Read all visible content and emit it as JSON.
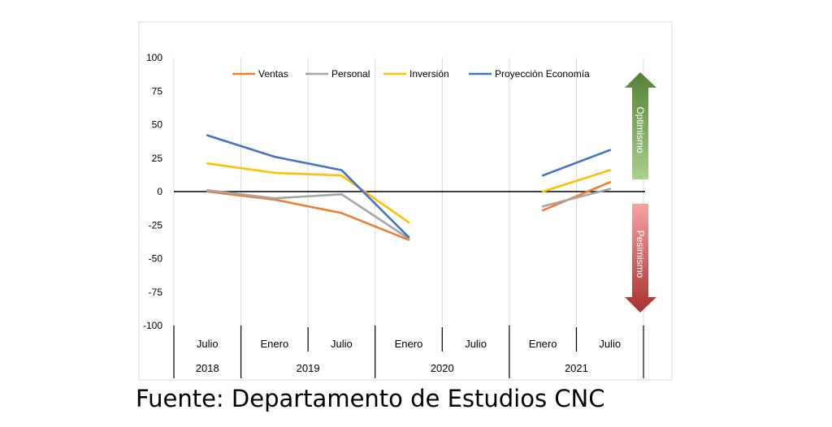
{
  "caption": "Fuente: Departamento de Estudios CNC",
  "colors": {
    "Ventas": "#ED7D31",
    "Personal": "#A5A5A5",
    "Inversión": "#FFC000",
    "Proyección Economía": "#4472C4",
    "optimism_arrow": "#70AD47",
    "pessimism_arrow": "#E06666"
  },
  "chart_data": {
    "type": "line",
    "title": "",
    "xlabel": "",
    "ylabel": "",
    "ylim": [
      -100,
      100
    ],
    "yticks": [
      100,
      75,
      50,
      25,
      0,
      -25,
      -50,
      -75,
      -100
    ],
    "grid": "vertical",
    "legend": "top",
    "categories": [
      "Julio",
      "Enero",
      "Julio",
      "Enero",
      "Julio",
      "Enero",
      "Julio"
    ],
    "years": [
      {
        "label": "2018",
        "span": 1
      },
      {
        "label": "2019",
        "span": 2
      },
      {
        "label": "2020",
        "span": 2
      },
      {
        "label": "2021",
        "span": 2
      }
    ],
    "series": [
      {
        "name": "Ventas",
        "values": [
          0,
          -6,
          -16,
          -36,
          null,
          -14,
          7
        ]
      },
      {
        "name": "Personal",
        "values": [
          1,
          -5,
          -2,
          -35,
          null,
          -11,
          2
        ]
      },
      {
        "name": "Inversión",
        "values": [
          21,
          14,
          12,
          -23,
          null,
          0,
          16
        ]
      },
      {
        "name": "Proyección Economía",
        "values": [
          42,
          26,
          16,
          -34,
          null,
          12,
          31
        ]
      }
    ],
    "annotations": {
      "up": "Optimismo",
      "down": "Pesimismo"
    }
  }
}
